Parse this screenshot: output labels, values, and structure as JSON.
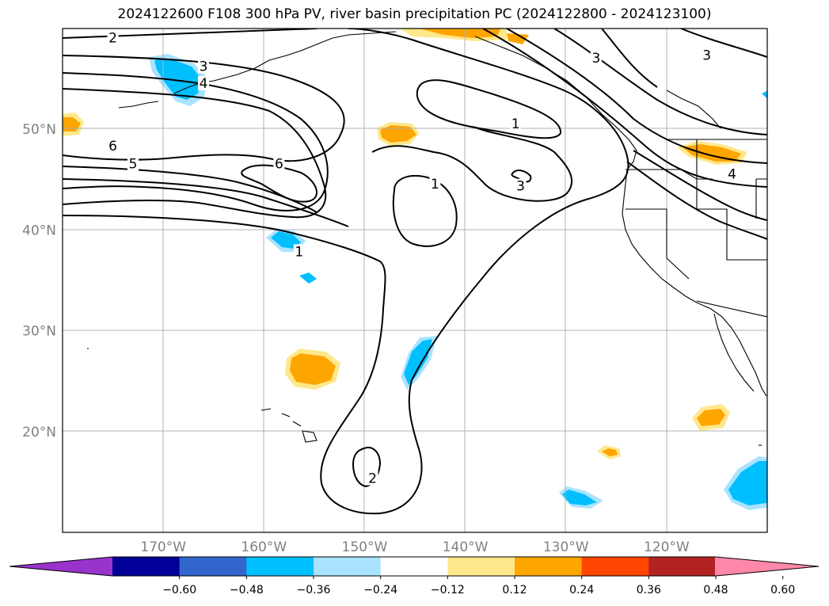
{
  "title": "2024122600 F108 300 hPa PV, river basin precipitation PC (2024122800 - 2024123100)",
  "map": {
    "lon_range": [
      -180,
      -110
    ],
    "lat_range": [
      10,
      60
    ],
    "lat_ticks": [
      {
        "value": 50,
        "label": "50°N"
      },
      {
        "value": 40,
        "label": "40°N"
      },
      {
        "value": 30,
        "label": "30°N"
      },
      {
        "value": 20,
        "label": "20°N"
      }
    ],
    "lon_ticks": [
      {
        "value": -170,
        "label": "170°W"
      },
      {
        "value": -160,
        "label": "160°W"
      },
      {
        "value": -150,
        "label": "150°W"
      },
      {
        "value": -140,
        "label": "140°W"
      },
      {
        "value": -130,
        "label": "130°W"
      },
      {
        "value": -120,
        "label": "120°W"
      }
    ],
    "contour_labels": [
      {
        "text": "2",
        "lon": -175,
        "lat": 59
      },
      {
        "text": "3",
        "lon": -166,
        "lat": 56.2
      },
      {
        "text": "4",
        "lon": -166,
        "lat": 54.5
      },
      {
        "text": "6",
        "lon": -175,
        "lat": 48.3
      },
      {
        "text": "5",
        "lon": -173,
        "lat": 46.5
      },
      {
        "text": "6",
        "lon": -158.5,
        "lat": 46.5
      },
      {
        "text": "1",
        "lon": -135,
        "lat": 50.5
      },
      {
        "text": "1",
        "lon": -143,
        "lat": 44.5
      },
      {
        "text": "3",
        "lon": -134.5,
        "lat": 44.3
      },
      {
        "text": "3",
        "lon": -127,
        "lat": 57
      },
      {
        "text": "3",
        "lon": -116,
        "lat": 57.3
      },
      {
        "text": "1",
        "lon": -156.5,
        "lat": 37.8
      },
      {
        "text": "2",
        "lon": -149.2,
        "lat": 15.3
      },
      {
        "text": "4",
        "lon": -113.5,
        "lat": 45.5
      }
    ]
  },
  "colorbar": {
    "ticks": [
      "−0.60",
      "−0.48",
      "−0.36",
      "−0.24",
      "−0.12",
      "0.12",
      "0.24",
      "0.36",
      "0.48",
      "0.60"
    ],
    "colors": [
      "#9933cc",
      "#000099",
      "#3366cc",
      "#00bfff",
      "#aae3ff",
      "#ffffff",
      "#ffe88c",
      "#ffa500",
      "#ff4500",
      "#b22222",
      "#ff88aa"
    ]
  }
}
